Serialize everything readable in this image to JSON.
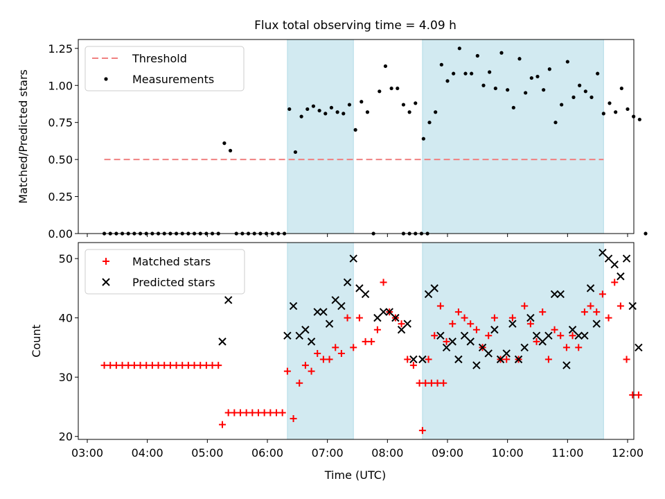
{
  "chart_data": [
    {
      "type": "scatter",
      "title": "Flux total observing time = 4.09 h",
      "ylabel": "Matched/Predicted stars",
      "xlim": [
        "03:12",
        "12:05"
      ],
      "ylim": [
        0,
        1.31
      ],
      "yticks": [
        "0.00",
        "0.25",
        "0.50",
        "0.75",
        "1.00",
        "1.25"
      ],
      "yticks_values": [
        0,
        0.25,
        0.5,
        0.75,
        1.0,
        1.25
      ],
      "legend_position": "top-left",
      "legend": [
        "Threshold",
        "Measurements"
      ],
      "colors": {
        "threshold": "#f08080",
        "measurements": "#000000",
        "shade": "#add8e6"
      },
      "shaded_intervals": [
        [
          "06:20",
          "07:26"
        ],
        [
          "08:35",
          "11:36"
        ]
      ],
      "threshold": {
        "name": "Threshold",
        "value": 0.5,
        "x": [
          "03:17",
          "11:36"
        ]
      },
      "series": [
        {
          "name": "Measurements",
          "points": [
            [
              "03:17",
              0
            ],
            [
              "03:23",
              0
            ],
            [
              "03:29",
              0
            ],
            [
              "03:35",
              0
            ],
            [
              "03:41",
              0
            ],
            [
              "03:47",
              0
            ],
            [
              "03:53",
              0
            ],
            [
              "03:59",
              0
            ],
            [
              "04:05",
              0
            ],
            [
              "04:11",
              0
            ],
            [
              "04:17",
              0
            ],
            [
              "04:23",
              0
            ],
            [
              "04:29",
              0
            ],
            [
              "04:35",
              0
            ],
            [
              "04:41",
              0
            ],
            [
              "04:47",
              0
            ],
            [
              "04:53",
              0
            ],
            [
              "04:59",
              0
            ],
            [
              "05:05",
              0
            ],
            [
              "05:11",
              0
            ],
            [
              "05:17",
              0.61
            ],
            [
              "05:23",
              0.56
            ],
            [
              "05:29",
              0
            ],
            [
              "05:35",
              0
            ],
            [
              "05:41",
              0
            ],
            [
              "05:47",
              0
            ],
            [
              "05:53",
              0
            ],
            [
              "05:59",
              0
            ],
            [
              "06:05",
              0
            ],
            [
              "06:11",
              0
            ],
            [
              "06:17",
              0
            ],
            [
              "06:22",
              0.84
            ],
            [
              "06:28",
              0.55
            ],
            [
              "06:34",
              0.79
            ],
            [
              "06:40",
              0.84
            ],
            [
              "06:46",
              0.86
            ],
            [
              "06:52",
              0.83
            ],
            [
              "06:58",
              0.81
            ],
            [
              "07:04",
              0.85
            ],
            [
              "07:10",
              0.82
            ],
            [
              "07:16",
              0.81
            ],
            [
              "07:22",
              0.87
            ],
            [
              "07:28",
              0.7
            ],
            [
              "07:34",
              0.89
            ],
            [
              "07:40",
              0.82
            ],
            [
              "07:46",
              0
            ],
            [
              "07:52",
              0.96
            ],
            [
              "07:58",
              1.13
            ],
            [
              "08:04",
              0.98
            ],
            [
              "08:10",
              0.98
            ],
            [
              "08:16",
              0.87
            ],
            [
              "08:22",
              0.82
            ],
            [
              "08:28",
              0.88
            ],
            [
              "08:16",
              0
            ],
            [
              "08:22",
              0
            ],
            [
              "08:28",
              0
            ],
            [
              "08:34",
              0
            ],
            [
              "08:40",
              0
            ],
            [
              "08:36",
              0.64
            ],
            [
              "08:42",
              0.75
            ],
            [
              "08:48",
              0.82
            ],
            [
              "08:54",
              1.14
            ],
            [
              "09:00",
              1.03
            ],
            [
              "09:06",
              1.08
            ],
            [
              "09:12",
              1.25
            ],
            [
              "09:18",
              1.08
            ],
            [
              "09:24",
              1.08
            ],
            [
              "09:30",
              1.2
            ],
            [
              "09:36",
              1.0
            ],
            [
              "09:42",
              1.09
            ],
            [
              "09:48",
              0.98
            ],
            [
              "09:54",
              1.22
            ],
            [
              "10:00",
              0.97
            ],
            [
              "10:06",
              0.85
            ],
            [
              "10:12",
              1.18
            ],
            [
              "10:18",
              0.95
            ],
            [
              "10:24",
              1.05
            ],
            [
              "10:30",
              1.06
            ],
            [
              "10:36",
              0.97
            ],
            [
              "10:42",
              1.11
            ],
            [
              "10:48",
              0.75
            ],
            [
              "10:54",
              0.87
            ],
            [
              "11:00",
              1.16
            ],
            [
              "11:06",
              0.92
            ],
            [
              "11:12",
              1.0
            ],
            [
              "11:18",
              0.96
            ],
            [
              "11:24",
              0.92
            ],
            [
              "11:30",
              1.08
            ],
            [
              "11:36",
              0.81
            ],
            [
              "11:42",
              0.88
            ],
            [
              "11:48",
              0.82
            ],
            [
              "11:54",
              0.98
            ],
            [
              "12:00",
              0.84
            ],
            [
              "12:06",
              0.79
            ],
            [
              "12:12",
              0.77
            ],
            [
              "12:18",
              0
            ]
          ]
        }
      ]
    },
    {
      "type": "scatter",
      "xlabel": "Time (UTC)",
      "ylabel": "Count",
      "xticks": [
        "03:00",
        "04:00",
        "05:00",
        "06:00",
        "07:00",
        "08:00",
        "09:00",
        "10:00",
        "11:00",
        "12:00"
      ],
      "ylim": [
        19.5,
        52.7
      ],
      "yticks": [
        "20",
        "30",
        "40",
        "50"
      ],
      "yticks_values": [
        20,
        30,
        40,
        50
      ],
      "legend_position": "top-left",
      "legend": [
        "Matched stars",
        "Predicted stars"
      ],
      "colors": {
        "matched": "#ff0000",
        "predicted": "#000000",
        "shade": "#add8e6"
      },
      "shaded_intervals": [
        [
          "06:20",
          "07:26"
        ],
        [
          "08:35",
          "11:36"
        ]
      ],
      "series": [
        {
          "name": "Matched stars",
          "marker": "plus",
          "points": [
            [
              "03:17",
              32
            ],
            [
              "03:23",
              32
            ],
            [
              "03:29",
              32
            ],
            [
              "03:35",
              32
            ],
            [
              "03:41",
              32
            ],
            [
              "03:47",
              32
            ],
            [
              "03:53",
              32
            ],
            [
              "03:59",
              32
            ],
            [
              "04:05",
              32
            ],
            [
              "04:11",
              32
            ],
            [
              "04:17",
              32
            ],
            [
              "04:23",
              32
            ],
            [
              "04:29",
              32
            ],
            [
              "04:35",
              32
            ],
            [
              "04:41",
              32
            ],
            [
              "04:47",
              32
            ],
            [
              "04:53",
              32
            ],
            [
              "04:59",
              32
            ],
            [
              "05:05",
              32
            ],
            [
              "05:11",
              32
            ],
            [
              "05:15",
              22
            ],
            [
              "05:21",
              24
            ],
            [
              "05:27",
              24
            ],
            [
              "05:33",
              24
            ],
            [
              "05:39",
              24
            ],
            [
              "05:45",
              24
            ],
            [
              "05:51",
              24
            ],
            [
              "05:57",
              24
            ],
            [
              "06:03",
              24
            ],
            [
              "06:09",
              24
            ],
            [
              "06:15",
              24
            ],
            [
              "06:20",
              31
            ],
            [
              "06:26",
              23
            ],
            [
              "06:32",
              29
            ],
            [
              "06:38",
              32
            ],
            [
              "06:44",
              31
            ],
            [
              "06:50",
              34
            ],
            [
              "06:56",
              33
            ],
            [
              "07:02",
              33
            ],
            [
              "07:08",
              35
            ],
            [
              "07:14",
              34
            ],
            [
              "07:20",
              40
            ],
            [
              "07:26",
              35
            ],
            [
              "07:32",
              40
            ],
            [
              "07:38",
              36
            ],
            [
              "07:44",
              36
            ],
            [
              "07:50",
              38
            ],
            [
              "07:56",
              46
            ],
            [
              "08:02",
              41
            ],
            [
              "08:08",
              40
            ],
            [
              "08:14",
              39
            ],
            [
              "08:20",
              33
            ],
            [
              "08:26",
              32
            ],
            [
              "08:32",
              29
            ],
            [
              "08:38",
              29
            ],
            [
              "08:44",
              29
            ],
            [
              "08:50",
              29
            ],
            [
              "08:56",
              29
            ],
            [
              "08:35",
              21
            ],
            [
              "08:41",
              33
            ],
            [
              "08:47",
              37
            ],
            [
              "08:53",
              42
            ],
            [
              "08:59",
              36
            ],
            [
              "09:05",
              39
            ],
            [
              "09:11",
              41
            ],
            [
              "09:17",
              40
            ],
            [
              "09:23",
              39
            ],
            [
              "09:29",
              38
            ],
            [
              "09:35",
              35
            ],
            [
              "09:41",
              37
            ],
            [
              "09:47",
              40
            ],
            [
              "09:53",
              33
            ],
            [
              "09:59",
              33
            ],
            [
              "10:05",
              40
            ],
            [
              "10:11",
              33
            ],
            [
              "10:17",
              42
            ],
            [
              "10:23",
              39
            ],
            [
              "10:29",
              36
            ],
            [
              "10:35",
              41
            ],
            [
              "10:41",
              33
            ],
            [
              "10:47",
              38
            ],
            [
              "10:53",
              37
            ],
            [
              "10:59",
              35
            ],
            [
              "11:05",
              37
            ],
            [
              "11:11",
              35
            ],
            [
              "11:17",
              41
            ],
            [
              "11:23",
              42
            ],
            [
              "11:29",
              41
            ],
            [
              "11:35",
              44
            ],
            [
              "11:41",
              40
            ],
            [
              "11:47",
              46
            ],
            [
              "11:53",
              42
            ],
            [
              "11:59",
              33
            ],
            [
              "12:05",
              27
            ],
            [
              "12:11",
              27
            ]
          ]
        },
        {
          "name": "Predicted stars",
          "marker": "x",
          "points": [
            [
              "05:15",
              36
            ],
            [
              "05:21",
              43
            ],
            [
              "06:20",
              37
            ],
            [
              "06:26",
              42
            ],
            [
              "06:32",
              37
            ],
            [
              "06:38",
              38
            ],
            [
              "06:44",
              36
            ],
            [
              "06:50",
              41
            ],
            [
              "06:56",
              41
            ],
            [
              "07:02",
              39
            ],
            [
              "07:08",
              43
            ],
            [
              "07:14",
              42
            ],
            [
              "07:20",
              46
            ],
            [
              "07:26",
              50
            ],
            [
              "07:32",
              45
            ],
            [
              "07:38",
              44
            ],
            [
              "07:50",
              40
            ],
            [
              "07:56",
              41
            ],
            [
              "08:02",
              41
            ],
            [
              "08:08",
              40
            ],
            [
              "08:14",
              38
            ],
            [
              "08:20",
              39
            ],
            [
              "08:26",
              33
            ],
            [
              "08:35",
              33
            ],
            [
              "08:41",
              44
            ],
            [
              "08:47",
              45
            ],
            [
              "08:53",
              37
            ],
            [
              "08:59",
              35
            ],
            [
              "09:05",
              36
            ],
            [
              "09:11",
              33
            ],
            [
              "09:17",
              37
            ],
            [
              "09:23",
              36
            ],
            [
              "09:29",
              32
            ],
            [
              "09:35",
              35
            ],
            [
              "09:41",
              34
            ],
            [
              "09:47",
              38
            ],
            [
              "09:53",
              33
            ],
            [
              "09:59",
              34
            ],
            [
              "10:05",
              39
            ],
            [
              "10:11",
              33
            ],
            [
              "10:17",
              35
            ],
            [
              "10:23",
              40
            ],
            [
              "10:29",
              37
            ],
            [
              "10:35",
              36
            ],
            [
              "10:41",
              37
            ],
            [
              "10:47",
              44
            ],
            [
              "10:53",
              44
            ],
            [
              "10:59",
              32
            ],
            [
              "11:05",
              38
            ],
            [
              "11:11",
              37
            ],
            [
              "11:17",
              37
            ],
            [
              "11:23",
              45
            ],
            [
              "11:29",
              39
            ],
            [
              "11:35",
              51
            ],
            [
              "11:41",
              50
            ],
            [
              "11:47",
              49
            ],
            [
              "11:53",
              47
            ],
            [
              "11:59",
              50
            ],
            [
              "12:05",
              42
            ],
            [
              "12:11",
              35
            ]
          ]
        }
      ]
    }
  ]
}
